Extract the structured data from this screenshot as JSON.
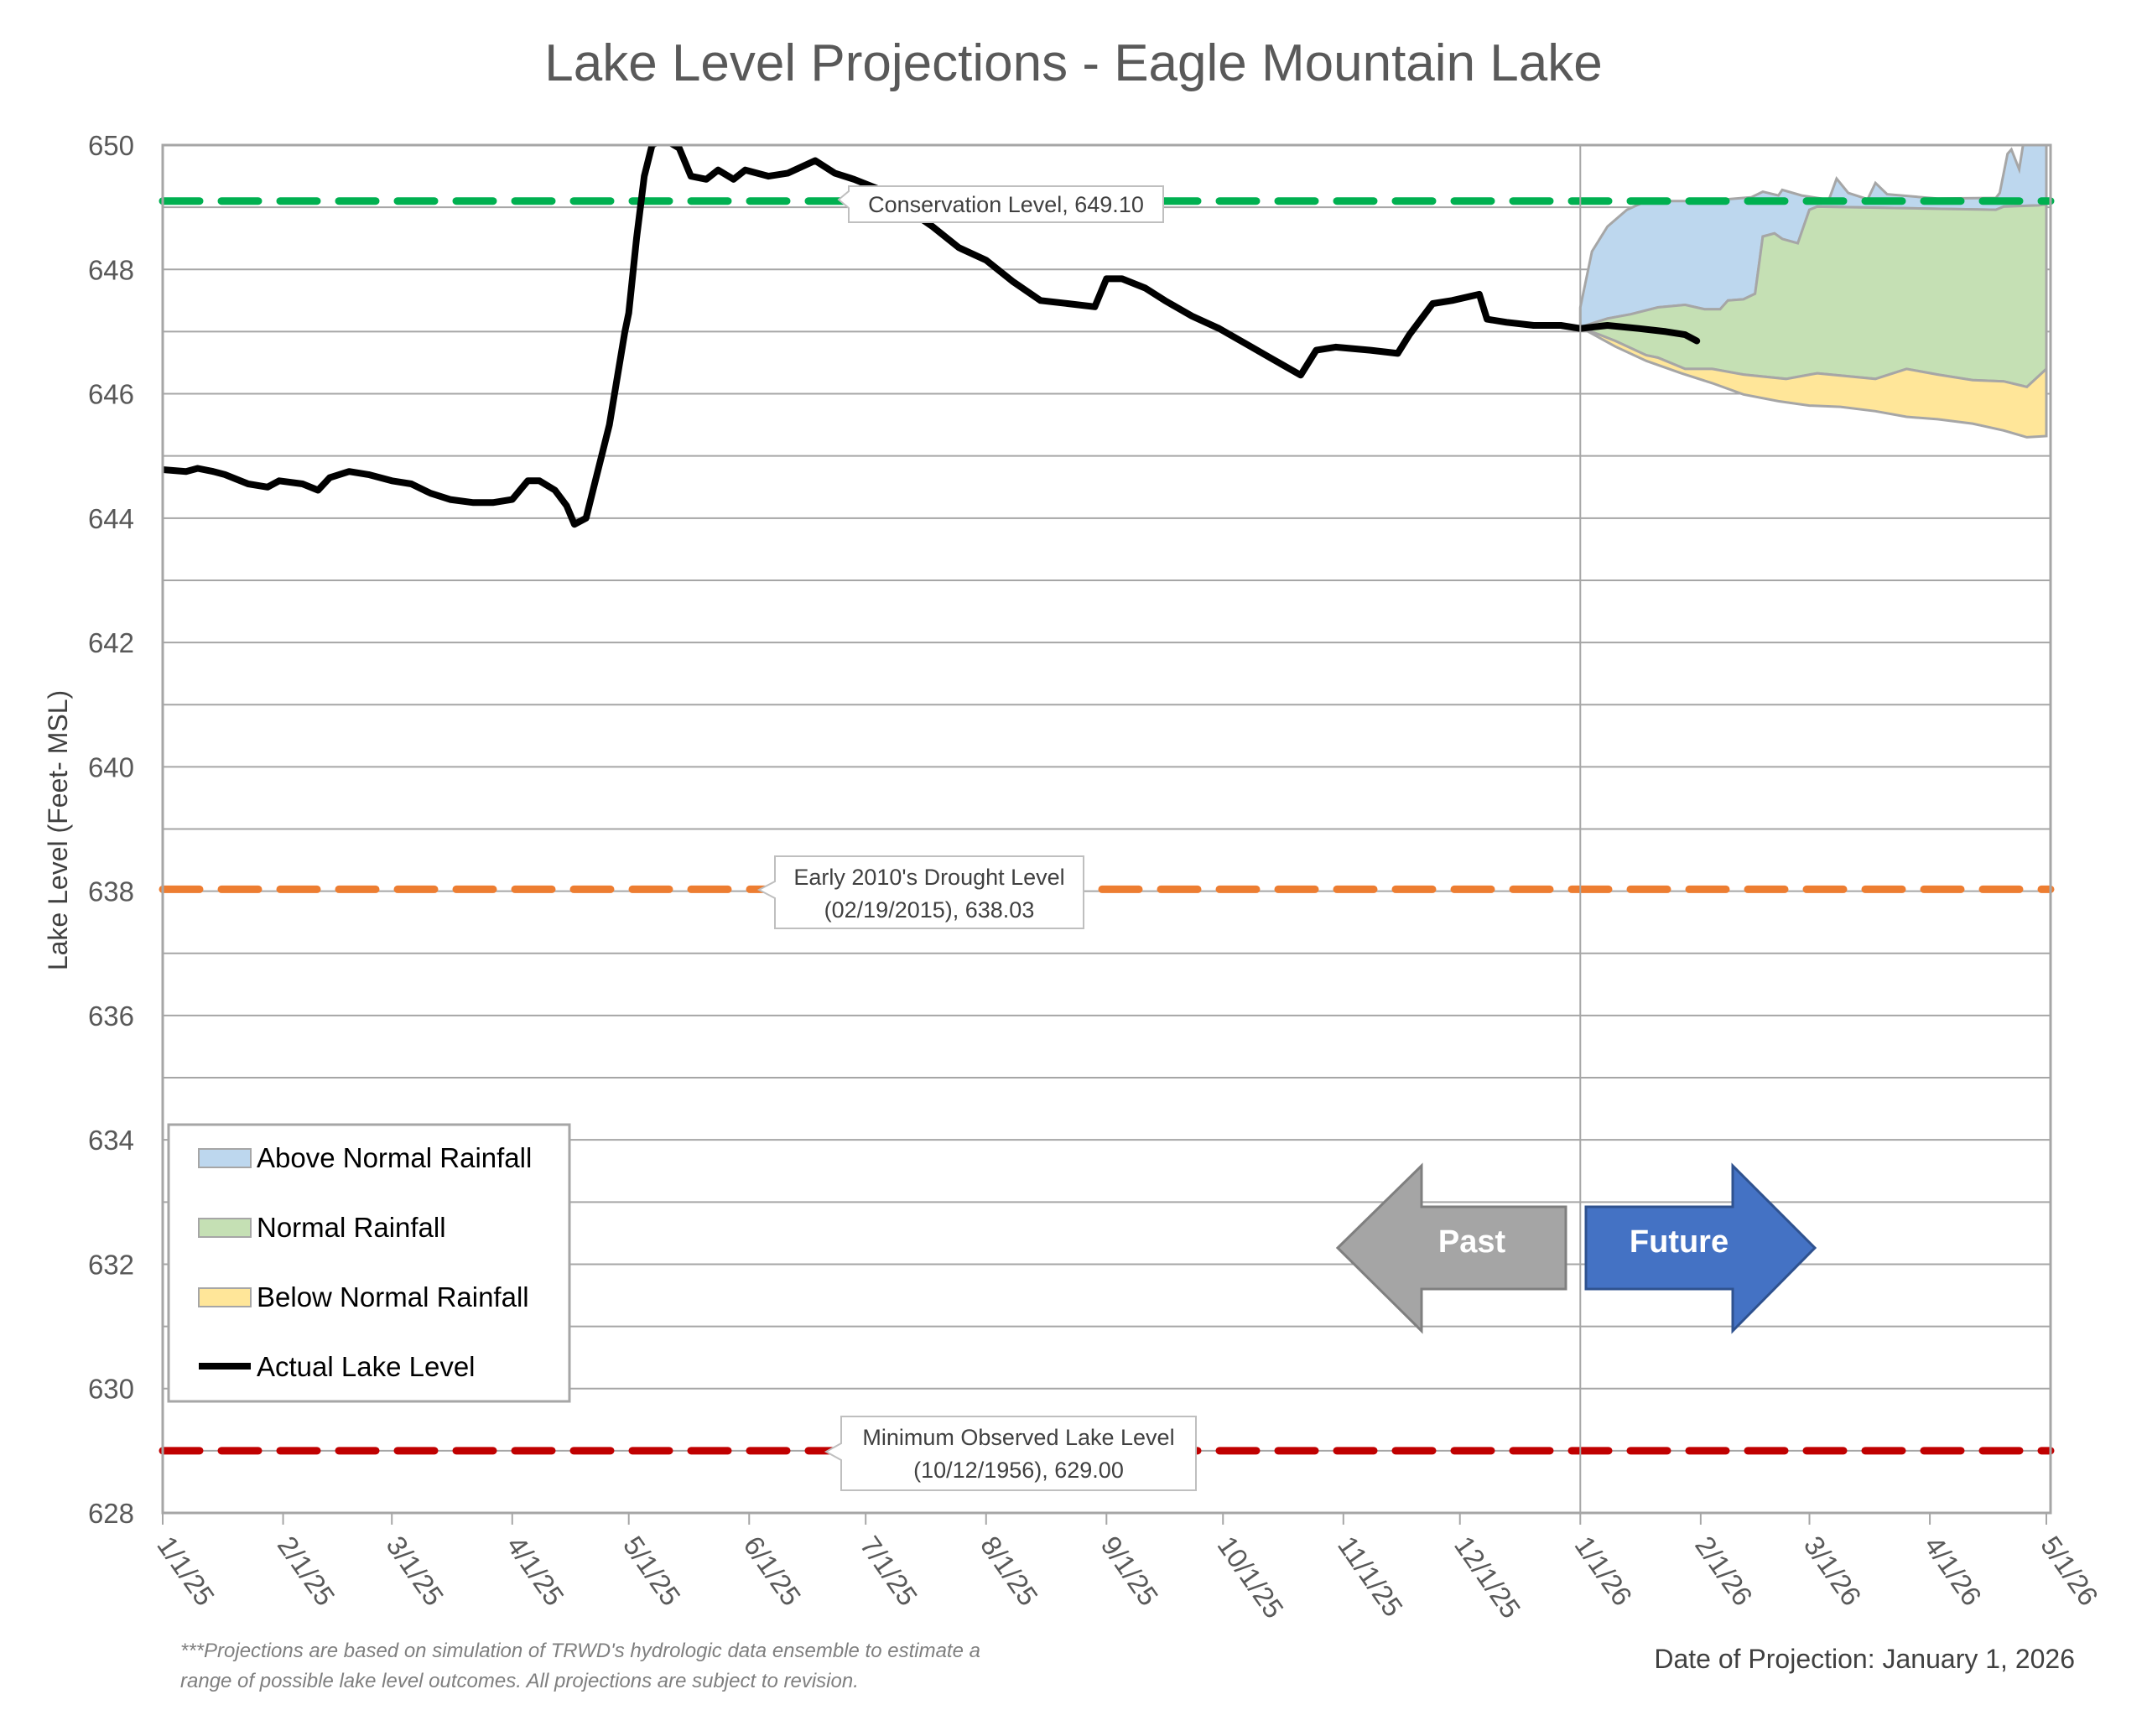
{
  "chart_data": {
    "type": "area",
    "title": "Lake Level Projections - Eagle Mountain Lake",
    "ylabel": "Lake Level (Feet- MSL)",
    "xlabel": "",
    "ylim": [
      628,
      650
    ],
    "yticks": [
      628,
      630,
      632,
      634,
      636,
      638,
      640,
      642,
      644,
      646,
      648,
      650
    ],
    "x_unit": "days since 1/1/25",
    "xlim": [
      0,
      485
    ],
    "xticks": [
      {
        "day": 0,
        "label": "1/1/25"
      },
      {
        "day": 31,
        "label": "2/1/25"
      },
      {
        "day": 59,
        "label": "3/1/25"
      },
      {
        "day": 90,
        "label": "4/1/25"
      },
      {
        "day": 120,
        "label": "5/1/25"
      },
      {
        "day": 151,
        "label": "6/1/25"
      },
      {
        "day": 181,
        "label": "7/1/25"
      },
      {
        "day": 212,
        "label": "8/1/25"
      },
      {
        "day": 243,
        "label": "9/1/25"
      },
      {
        "day": 273,
        "label": "10/1/25"
      },
      {
        "day": 304,
        "label": "11/1/25"
      },
      {
        "day": 334,
        "label": "12/1/25"
      },
      {
        "day": 365,
        "label": "1/1/26"
      },
      {
        "day": 396,
        "label": "2/1/26"
      },
      {
        "day": 424,
        "label": "3/1/26"
      },
      {
        "day": 455,
        "label": "4/1/26"
      },
      {
        "day": 485,
        "label": "5/1/26"
      }
    ],
    "grid": true,
    "projection_start_day": 365,
    "reference_lines": [
      {
        "name": "Conservation Level",
        "value": 649.1,
        "color": "#00B050",
        "label": [
          "Conservation Level, 649.10"
        ]
      },
      {
        "name": "Early 2010's Drought Level",
        "value": 638.03,
        "color": "#ED7D31",
        "label": [
          "Early 2010's Drought Level",
          "(02/19/2015), 638.03"
        ]
      },
      {
        "name": "Minimum Observed Lake Level",
        "value": 629.0,
        "color": "#C00000",
        "label": [
          "Minimum Observed Lake Level",
          "(10/12/1956), 629.00"
        ]
      }
    ],
    "bands": [
      {
        "name": "Above Normal Rainfall",
        "color": "#BDD7EE",
        "upper": [
          [
            365,
            647.39
          ],
          [
            368,
            648.29
          ],
          [
            372,
            648.69
          ],
          [
            377,
            648.96
          ],
          [
            382,
            649.1
          ],
          [
            397,
            649.1
          ],
          [
            409,
            649.16
          ],
          [
            412,
            649.25
          ],
          [
            416,
            649.19
          ],
          [
            417,
            649.28
          ],
          [
            422,
            649.19
          ],
          [
            429,
            649.12
          ],
          [
            431,
            649.46
          ],
          [
            434,
            649.23
          ],
          [
            439,
            649.13
          ],
          [
            441,
            649.39
          ],
          [
            444,
            649.21
          ],
          [
            457,
            649.14
          ],
          [
            472,
            649.15
          ],
          [
            473,
            649.23
          ],
          [
            475,
            649.86
          ],
          [
            476,
            649.93
          ],
          [
            478,
            649.61
          ],
          [
            479,
            650
          ],
          [
            485,
            650
          ]
        ]
      },
      {
        "name": "Normal Rainfall",
        "color": "#C5E0B4",
        "upper": [
          [
            365,
            647.07
          ],
          [
            372,
            647.21
          ],
          [
            378,
            647.28
          ],
          [
            385,
            647.39
          ],
          [
            392,
            647.43
          ],
          [
            397,
            647.36
          ],
          [
            401,
            647.36
          ],
          [
            403,
            647.5
          ],
          [
            407,
            647.52
          ],
          [
            410,
            647.61
          ],
          [
            412,
            648.53
          ],
          [
            415,
            648.58
          ],
          [
            417,
            648.49
          ],
          [
            421,
            648.42
          ],
          [
            424,
            648.96
          ],
          [
            426,
            649.01
          ],
          [
            472,
            648.96
          ],
          [
            474,
            649.01
          ],
          [
            483,
            649.03
          ],
          [
            485,
            649.05
          ]
        ]
      },
      {
        "name": "Below Normal Rainfall",
        "color": "#FFE699",
        "upper": [
          [
            365,
            647.07
          ],
          [
            374,
            646.85
          ],
          [
            382,
            646.62
          ],
          [
            385,
            646.58
          ],
          [
            392,
            646.4
          ],
          [
            399,
            646.4
          ],
          [
            407,
            646.31
          ],
          [
            418,
            646.24
          ],
          [
            426,
            646.33
          ],
          [
            441,
            646.24
          ],
          [
            449,
            646.4
          ],
          [
            457,
            646.31
          ],
          [
            466,
            646.22
          ],
          [
            474,
            646.2
          ],
          [
            480,
            646.11
          ],
          [
            485,
            646.4
          ]
        ],
        "lower": [
          [
            365,
            647.07
          ],
          [
            374,
            646.76
          ],
          [
            382,
            646.53
          ],
          [
            391,
            646.33
          ],
          [
            399,
            646.17
          ],
          [
            407,
            645.99
          ],
          [
            416,
            645.88
          ],
          [
            424,
            645.81
          ],
          [
            432,
            645.79
          ],
          [
            441,
            645.72
          ],
          [
            449,
            645.63
          ],
          [
            457,
            645.59
          ],
          [
            466,
            645.52
          ],
          [
            474,
            645.41
          ],
          [
            480,
            645.3
          ],
          [
            485,
            645.32
          ]
        ]
      }
    ],
    "series": [
      {
        "name": "Actual Lake Level",
        "color": "#000000",
        "points": [
          [
            0,
            644.78
          ],
          [
            6,
            644.75
          ],
          [
            9,
            644.8
          ],
          [
            13,
            644.75
          ],
          [
            16,
            644.7
          ],
          [
            22,
            644.55
          ],
          [
            27,
            644.5
          ],
          [
            30,
            644.6
          ],
          [
            36,
            644.55
          ],
          [
            40,
            644.45
          ],
          [
            43,
            644.65
          ],
          [
            48,
            644.75
          ],
          [
            53,
            644.7
          ],
          [
            59,
            644.6
          ],
          [
            64,
            644.55
          ],
          [
            69,
            644.4
          ],
          [
            74,
            644.3
          ],
          [
            80,
            644.25
          ],
          [
            85,
            644.25
          ],
          [
            90,
            644.3
          ],
          [
            94,
            644.6
          ],
          [
            97,
            644.6
          ],
          [
            101,
            644.45
          ],
          [
            104,
            644.2
          ],
          [
            106,
            643.9
          ],
          [
            109,
            644.0
          ],
          [
            111,
            644.5
          ],
          [
            115,
            645.5
          ],
          [
            119,
            647.0
          ],
          [
            120,
            647.3
          ],
          [
            122,
            648.5
          ],
          [
            124,
            649.5
          ],
          [
            126,
            650.0
          ],
          [
            129,
            650.1
          ],
          [
            133,
            649.95
          ],
          [
            136,
            649.5
          ],
          [
            140,
            649.45
          ],
          [
            143,
            649.6
          ],
          [
            147,
            649.45
          ],
          [
            150,
            649.6
          ],
          [
            156,
            649.5
          ],
          [
            161,
            649.55
          ],
          [
            168,
            649.75
          ],
          [
            173,
            649.55
          ],
          [
            178,
            649.45
          ],
          [
            184,
            649.3
          ],
          [
            191,
            649.0
          ],
          [
            198,
            648.7
          ],
          [
            205,
            648.35
          ],
          [
            212,
            648.15
          ],
          [
            219,
            647.8
          ],
          [
            226,
            647.5
          ],
          [
            233,
            647.45
          ],
          [
            240,
            647.4
          ],
          [
            243,
            647.85
          ],
          [
            247,
            647.85
          ],
          [
            253,
            647.7
          ],
          [
            258,
            647.5
          ],
          [
            265,
            647.25
          ],
          [
            272,
            647.05
          ],
          [
            279,
            646.8
          ],
          [
            286,
            646.55
          ],
          [
            293,
            646.3
          ],
          [
            297,
            646.7
          ],
          [
            302,
            646.75
          ],
          [
            311,
            646.7
          ],
          [
            318,
            646.65
          ],
          [
            321,
            646.95
          ],
          [
            327,
            647.45
          ],
          [
            332,
            647.5
          ],
          [
            339,
            647.6
          ],
          [
            341,
            647.2
          ],
          [
            346,
            647.15
          ],
          [
            353,
            647.1
          ],
          [
            360,
            647.1
          ],
          [
            365,
            647.05
          ],
          [
            372,
            647.1
          ],
          [
            380,
            647.05
          ],
          [
            387,
            647.0
          ],
          [
            392,
            646.95
          ],
          [
            395,
            646.85
          ]
        ]
      }
    ],
    "legend": {
      "placement": "bottom-left",
      "entries": [
        "Above Normal Rainfall",
        "Normal Rainfall",
        "Below Normal Rainfall",
        "Actual Lake Level"
      ]
    },
    "annotations": {
      "past": "Past",
      "future": "Future"
    }
  },
  "footer": {
    "note_line1": "***Projections are based on simulation of TRWD's hydrologic data ensemble to estimate a",
    "note_line2": "range of possible lake level outcomes.  All projections are subject to revision.",
    "date_of_projection": "Date of Projection: January 1, 2026"
  }
}
